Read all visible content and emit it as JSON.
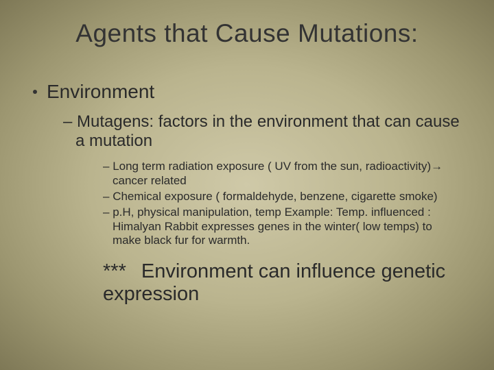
{
  "title": "Agents that Cause Mutations:",
  "level1": {
    "text": "Environment"
  },
  "level2": {
    "text": "Mutagens: factors in the environment that can cause a mutation"
  },
  "level3": {
    "items": [
      "Long term radiation exposure ( UV from the sun, radioactivity)→ cancer related",
      "Chemical exposure ( formaldehyde, benzene, cigarette smoke)",
      "p.H, physical manipulation, temp  Example: Temp. influenced : Himalyan Rabbit expresses genes in the winter( low temps) to make black fur for warmth."
    ]
  },
  "callout": {
    "stars": "***",
    "text": "Environment can influence genetic expression"
  },
  "style": {
    "title_fontsize": 37,
    "l1_fontsize": 28,
    "l2_fontsize": 24,
    "l3_fontsize": 17,
    "callout_fontsize": 29,
    "text_color": "#2a2a2a",
    "bg_gradient_center": "#cfc9a8",
    "bg_gradient_mid": "#bab48e",
    "bg_gradient_outer": "#9c9670",
    "bg_gradient_edge": "#7e7856",
    "font_family": "Arial"
  }
}
